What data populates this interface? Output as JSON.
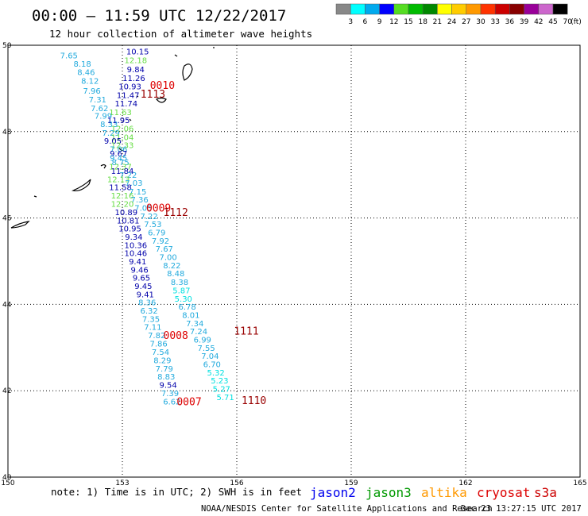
{
  "header": {
    "title": "00:00 – 11:59 UTC 12/22/2017",
    "subtitle": "12 hour collection of altimeter wave heights"
  },
  "color_scale": {
    "labels": [
      "3",
      "6",
      "9",
      "12",
      "15",
      "18",
      "21",
      "24",
      "27",
      "30",
      "33",
      "36",
      "39",
      "42",
      "45",
      "70"
    ],
    "unit": "(ft)",
    "colors": [
      "#888888",
      "#00ffff",
      "#00aaee",
      "#0000ff",
      "#55dd22",
      "#00bb00",
      "#008800",
      "#ffff00",
      "#ffcc00",
      "#ff9900",
      "#ff3300",
      "#cc0000",
      "#880000",
      "#990099",
      "#cc66cc",
      "#000000"
    ]
  },
  "footer": {
    "note": "note: 1) Time is in UTC; 2) SWH is in feet",
    "satellites": [
      {
        "name": "jason2",
        "color": "#0000ee"
      },
      {
        "name": "jason3",
        "color": "#009900"
      },
      {
        "name": "altika",
        "color": "#ff9900"
      },
      {
        "name": "cryosat",
        "color": "#dd0000"
      },
      {
        "name": "s3a",
        "color": "#cc0000"
      }
    ],
    "credit": "NOAA/NESDIS Center for Satellite Applications and Research",
    "timestamp": "Dec 23 13:27:15 UTC 2017"
  },
  "chart_data": {
    "type": "scatter",
    "xlim": [
      150,
      165
    ],
    "ylim": [
      40,
      50
    ],
    "x_ticks": [
      "150",
      "153",
      "156",
      "159",
      "162",
      "165"
    ],
    "y_ticks": [
      "40",
      "42",
      "44",
      "46",
      "48",
      "50"
    ],
    "grid": true,
    "points": [
      {
        "x": 153.4,
        "y": 49.86,
        "v": "10.15",
        "c": "#0000aa"
      },
      {
        "x": 151.6,
        "y": 49.77,
        "v": "7.65",
        "c": "#22aadd"
      },
      {
        "x": 153.35,
        "y": 49.66,
        "v": "12.18",
        "c": "#66dd44"
      },
      {
        "x": 151.95,
        "y": 49.58,
        "v": "8.18",
        "c": "#22aadd"
      },
      {
        "x": 153.35,
        "y": 49.45,
        "v": "9.84",
        "c": "#0000aa"
      },
      {
        "x": 152.05,
        "y": 49.38,
        "v": "8.46",
        "c": "#22aadd"
      },
      {
        "x": 153.3,
        "y": 49.25,
        "v": "11.26",
        "c": "#0000aa"
      },
      {
        "x": 152.15,
        "y": 49.18,
        "v": "8.12",
        "c": "#22aadd"
      },
      {
        "x": 153.2,
        "y": 49.05,
        "v": "10.93",
        "c": "#0000aa"
      },
      {
        "x": 152.2,
        "y": 48.95,
        "v": "7.96",
        "c": "#22aadd"
      },
      {
        "x": 153.15,
        "y": 48.85,
        "v": "11.47",
        "c": "#0000aa"
      },
      {
        "x": 152.35,
        "y": 48.75,
        "v": "7.31",
        "c": "#22aadd"
      },
      {
        "x": 153.1,
        "y": 48.66,
        "v": "11.74",
        "c": "#0000aa"
      },
      {
        "x": 152.4,
        "y": 48.55,
        "v": "7.62",
        "c": "#22aadd"
      },
      {
        "x": 152.95,
        "y": 48.46,
        "v": "11.63",
        "c": "#66dd44"
      },
      {
        "x": 152.5,
        "y": 48.37,
        "v": "7.99",
        "c": "#22aadd"
      },
      {
        "x": 152.9,
        "y": 48.27,
        "v": "11.95",
        "c": "#0000aa"
      },
      {
        "x": 152.65,
        "y": 48.18,
        "v": "8.33",
        "c": "#22aadd"
      },
      {
        "x": 153.0,
        "y": 48.08,
        "v": "12.06",
        "c": "#66dd44"
      },
      {
        "x": 152.7,
        "y": 47.98,
        "v": "7.29",
        "c": "#22aadd"
      },
      {
        "x": 153.0,
        "y": 47.88,
        "v": "11.04",
        "c": "#66dd44"
      },
      {
        "x": 152.75,
        "y": 47.79,
        "v": "9.05",
        "c": "#0000aa"
      },
      {
        "x": 153.0,
        "y": 47.69,
        "v": "12.33",
        "c": "#66dd44"
      },
      {
        "x": 152.9,
        "y": 47.6,
        "v": "7.06",
        "c": "#22aadd"
      },
      {
        "x": 152.9,
        "y": 47.5,
        "v": "9.67",
        "c": "#0000aa"
      },
      {
        "x": 152.9,
        "y": 47.4,
        "v": "9.45",
        "c": "#22aadd"
      },
      {
        "x": 152.95,
        "y": 47.3,
        "v": "8.75",
        "c": "#22aadd"
      },
      {
        "x": 152.95,
        "y": 47.2,
        "v": "12.37",
        "c": "#66dd44"
      },
      {
        "x": 153.0,
        "y": 47.1,
        "v": "11.84",
        "c": "#0000aa"
      },
      {
        "x": 153.15,
        "y": 47.0,
        "v": "7.22",
        "c": "#22aadd"
      },
      {
        "x": 152.9,
        "y": 46.9,
        "v": "12.13",
        "c": "#66dd44"
      },
      {
        "x": 153.3,
        "y": 46.82,
        "v": "7.03",
        "c": "#22aadd"
      },
      {
        "x": 152.95,
        "y": 46.72,
        "v": "11.58",
        "c": "#0000aa"
      },
      {
        "x": 153.4,
        "y": 46.62,
        "v": "7.15",
        "c": "#22aadd"
      },
      {
        "x": 153.0,
        "y": 46.53,
        "v": "12.16",
        "c": "#66dd44"
      },
      {
        "x": 153.45,
        "y": 46.43,
        "v": "7.36",
        "c": "#22aadd"
      },
      {
        "x": 153.0,
        "y": 46.33,
        "v": "12.20",
        "c": "#66dd44"
      },
      {
        "x": 153.55,
        "y": 46.24,
        "v": "7.05",
        "c": "#22aadd"
      },
      {
        "x": 153.1,
        "y": 46.14,
        "v": "10.89",
        "c": "#0000aa"
      },
      {
        "x": 153.7,
        "y": 46.05,
        "v": "7.22",
        "c": "#22aadd"
      },
      {
        "x": 153.15,
        "y": 45.95,
        "v": "10.81",
        "c": "#0000aa"
      },
      {
        "x": 153.8,
        "y": 45.86,
        "v": "7.53",
        "c": "#22aadd"
      },
      {
        "x": 153.2,
        "y": 45.76,
        "v": "10.95",
        "c": "#0000aa"
      },
      {
        "x": 153.9,
        "y": 45.67,
        "v": "6.79",
        "c": "#22aadd"
      },
      {
        "x": 153.3,
        "y": 45.57,
        "v": "9.34",
        "c": "#0000aa"
      },
      {
        "x": 154.0,
        "y": 45.48,
        "v": "7.92",
        "c": "#22aadd"
      },
      {
        "x": 153.35,
        "y": 45.38,
        "v": "10.36",
        "c": "#0000aa"
      },
      {
        "x": 154.1,
        "y": 45.29,
        "v": "7.67",
        "c": "#22aadd"
      },
      {
        "x": 153.35,
        "y": 45.19,
        "v": "10.46",
        "c": "#0000aa"
      },
      {
        "x": 154.2,
        "y": 45.1,
        "v": "7.00",
        "c": "#22aadd"
      },
      {
        "x": 153.4,
        "y": 45.0,
        "v": "9.41",
        "c": "#0000aa"
      },
      {
        "x": 154.3,
        "y": 44.91,
        "v": "8.22",
        "c": "#22aadd"
      },
      {
        "x": 153.45,
        "y": 44.81,
        "v": "9.46",
        "c": "#0000aa"
      },
      {
        "x": 154.4,
        "y": 44.72,
        "v": "8.48",
        "c": "#22aadd"
      },
      {
        "x": 153.5,
        "y": 44.62,
        "v": "9.65",
        "c": "#0000aa"
      },
      {
        "x": 154.5,
        "y": 44.52,
        "v": "8.38",
        "c": "#22aadd"
      },
      {
        "x": 153.55,
        "y": 44.43,
        "v": "9.45",
        "c": "#0000aa"
      },
      {
        "x": 154.55,
        "y": 44.33,
        "v": "5.87",
        "c": "#00e0e0"
      },
      {
        "x": 153.6,
        "y": 44.24,
        "v": "9.41",
        "c": "#0000aa"
      },
      {
        "x": 154.6,
        "y": 44.14,
        "v": "5.30",
        "c": "#00e0e0"
      },
      {
        "x": 153.65,
        "y": 44.05,
        "v": "8.36",
        "c": "#22aadd"
      },
      {
        "x": 154.7,
        "y": 43.95,
        "v": "6.78",
        "c": "#22aadd"
      },
      {
        "x": 153.7,
        "y": 43.86,
        "v": "6.32",
        "c": "#22aadd"
      },
      {
        "x": 154.8,
        "y": 43.76,
        "v": "8.01",
        "c": "#22aadd"
      },
      {
        "x": 153.75,
        "y": 43.67,
        "v": "7.35",
        "c": "#22aadd"
      },
      {
        "x": 154.9,
        "y": 43.57,
        "v": "7.34",
        "c": "#22aadd"
      },
      {
        "x": 153.8,
        "y": 43.48,
        "v": "7.11",
        "c": "#22aadd"
      },
      {
        "x": 155.0,
        "y": 43.38,
        "v": "7.24",
        "c": "#22aadd"
      },
      {
        "x": 153.9,
        "y": 43.29,
        "v": "7.82",
        "c": "#22aadd"
      },
      {
        "x": 155.1,
        "y": 43.19,
        "v": "6.99",
        "c": "#22aadd"
      },
      {
        "x": 153.95,
        "y": 43.1,
        "v": "7.86",
        "c": "#22aadd"
      },
      {
        "x": 155.2,
        "y": 43.0,
        "v": "7.55",
        "c": "#22aadd"
      },
      {
        "x": 154.0,
        "y": 42.9,
        "v": "7.54",
        "c": "#22aadd"
      },
      {
        "x": 155.3,
        "y": 42.81,
        "v": "7.04",
        "c": "#22aadd"
      },
      {
        "x": 154.05,
        "y": 42.71,
        "v": "8.29",
        "c": "#22aadd"
      },
      {
        "x": 155.35,
        "y": 42.62,
        "v": "6.70",
        "c": "#22aadd"
      },
      {
        "x": 154.1,
        "y": 42.52,
        "v": "7.79",
        "c": "#22aadd"
      },
      {
        "x": 155.45,
        "y": 42.43,
        "v": "5.32",
        "c": "#00e0e0"
      },
      {
        "x": 154.15,
        "y": 42.33,
        "v": "8.83",
        "c": "#22aadd"
      },
      {
        "x": 155.55,
        "y": 42.24,
        "v": "5.23",
        "c": "#00e0e0"
      },
      {
        "x": 154.2,
        "y": 42.14,
        "v": "9.54",
        "c": "#0000aa"
      },
      {
        "x": 155.6,
        "y": 42.05,
        "v": "5.27",
        "c": "#00e0e0"
      },
      {
        "x": 154.25,
        "y": 41.95,
        "v": "7.39",
        "c": "#22aadd"
      },
      {
        "x": 155.7,
        "y": 41.86,
        "v": "5.71",
        "c": "#00e0e0"
      },
      {
        "x": 154.3,
        "y": 41.76,
        "v": "6.62",
        "c": "#22aadd"
      }
    ],
    "time_labels": [
      {
        "x": 154.05,
        "y": 49.08,
        "text": "0010",
        "c": "#dd0000"
      },
      {
        "x": 153.8,
        "y": 48.88,
        "text": "1113",
        "c": "#990000"
      },
      {
        "x": 153.95,
        "y": 46.24,
        "text": "0009",
        "c": "#dd0000"
      },
      {
        "x": 154.4,
        "y": 46.14,
        "text": "1112",
        "c": "#990000"
      },
      {
        "x": 154.4,
        "y": 43.29,
        "text": "0008",
        "c": "#dd0000"
      },
      {
        "x": 156.25,
        "y": 43.39,
        "text": "1111",
        "c": "#990000"
      },
      {
        "x": 154.75,
        "y": 41.76,
        "text": "0007",
        "c": "#dd0000"
      },
      {
        "x": 156.45,
        "y": 41.78,
        "text": "1110",
        "c": "#990000"
      }
    ]
  }
}
